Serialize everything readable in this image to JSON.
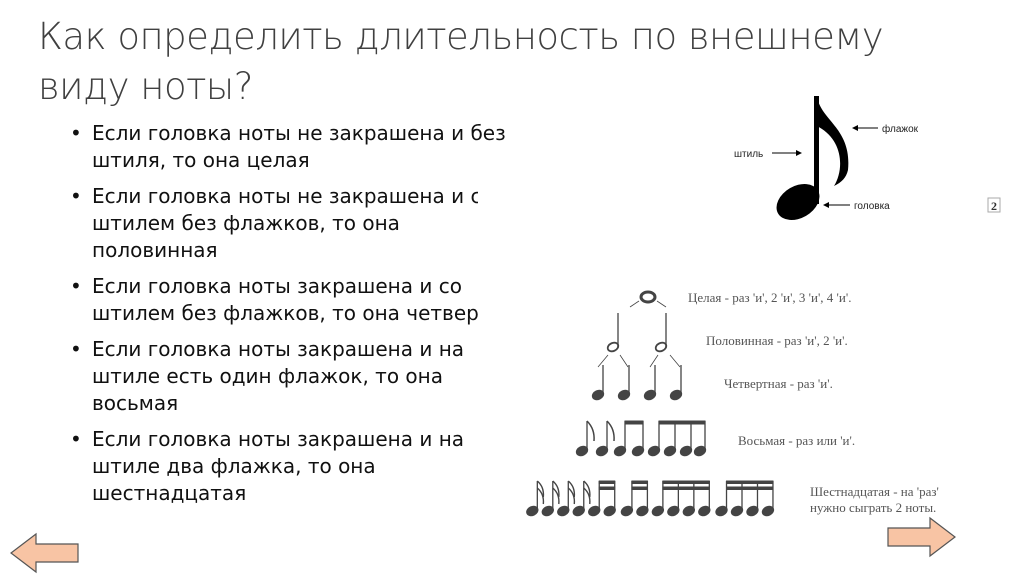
{
  "title": "Как определить длительность по внешнему виду ноты?",
  "bullets": [
    "Если головка ноты не закрашена и без штиля, то она целая",
    "Если головка ноты не закрашена и с штилем без флажков, то она половинная",
    "Если головка ноты закрашена и со штилем без флажков, то она четвертная",
    "Если головка ноты закрашена и на штиле есть один флажок, то она восьмая",
    "Если головка ноты закрашена и на штиле два флажка, то она шестнадцатая"
  ],
  "note_diagram": {
    "flag_label": "флажок",
    "stem_label": "штиль",
    "head_label": "головка",
    "page_badge": "2"
  },
  "durations": {
    "whole": "Целая  -  раз 'и', 2 'и', 3 'и', 4 'и'.",
    "half": "Половинная  -  раз 'и', 2 'и'.",
    "quarter": "Четвертная  -  раз 'и'.",
    "eighth": "Восьмая  -  раз  или  'и'.",
    "sixteenth_line1": "Шестнадцатая  -  на  'раз'",
    "sixteenth_line2": "нужно  сыграть  2 ноты."
  },
  "nav": {
    "arrow_color": "#F8C4A4",
    "prev_icon": "left-arrow",
    "next_icon": "right-arrow"
  }
}
